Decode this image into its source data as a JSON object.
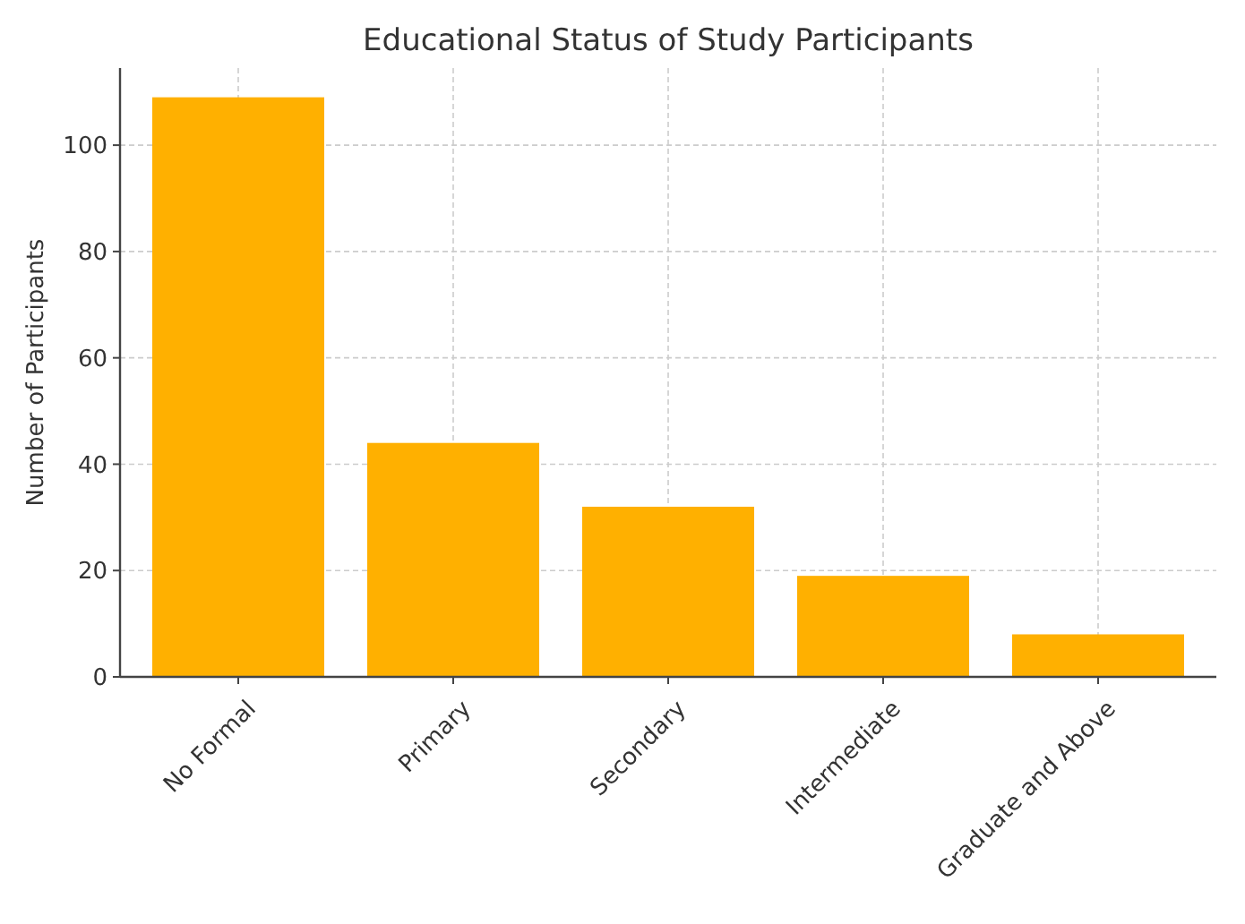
{
  "chart_data": {
    "type": "bar",
    "title": "Educational Status of Study Participants",
    "ylabel": "Number of Participants",
    "categories": [
      "No Formal",
      "Primary",
      "Secondary",
      "Intermediate",
      "Graduate and Above"
    ],
    "values": [
      109,
      44,
      32,
      19,
      8
    ],
    "color": "#ffb000",
    "ylim": [
      0,
      114.5
    ],
    "yticks": [
      0,
      20,
      40,
      60,
      80,
      100
    ],
    "grid": true
  }
}
